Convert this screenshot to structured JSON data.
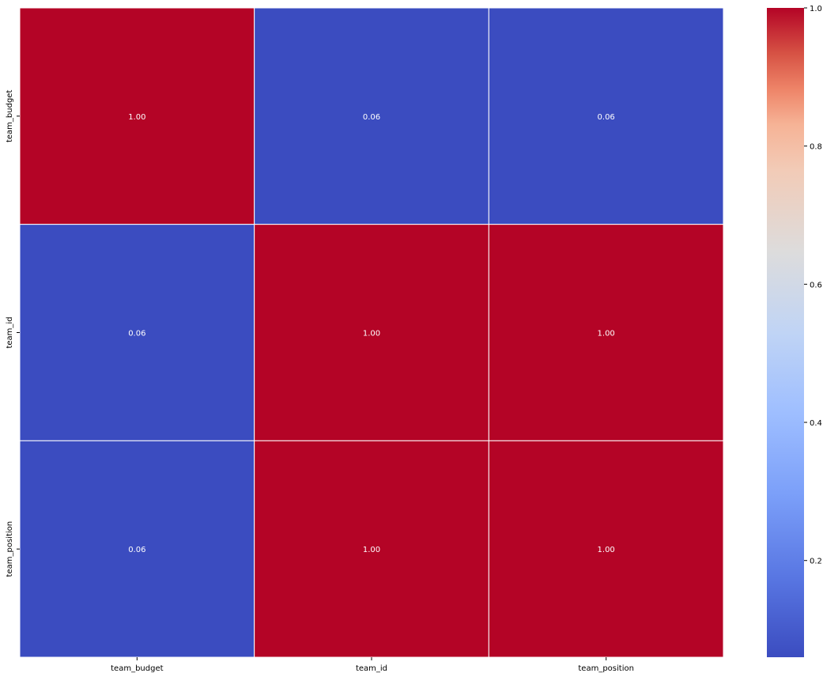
{
  "chart_data": {
    "type": "heatmap",
    "x_labels": [
      "team_budget",
      "team_id",
      "team_position"
    ],
    "y_labels": [
      "team_budget",
      "team_id",
      "team_position"
    ],
    "values": [
      [
        1.0,
        0.06,
        0.06
      ],
      [
        0.06,
        1.0,
        1.0
      ],
      [
        0.06,
        1.0,
        1.0
      ]
    ],
    "cell_labels": [
      [
        "1.00",
        "0.06",
        "0.06"
      ],
      [
        "0.06",
        "1.00",
        "1.00"
      ],
      [
        "0.06",
        "1.00",
        "1.00"
      ]
    ],
    "colormap": "coolwarm",
    "vmin": 0.06,
    "vmax": 1.0,
    "colorbar_ticks": [
      0.2,
      0.4,
      0.6,
      0.8,
      1.0
    ],
    "colorbar_tick_labels": [
      "0.2",
      "0.4",
      "0.6",
      "0.8",
      "1.0"
    ],
    "annotation_color": "#ffffff",
    "gridline_color": "#ffffff"
  }
}
